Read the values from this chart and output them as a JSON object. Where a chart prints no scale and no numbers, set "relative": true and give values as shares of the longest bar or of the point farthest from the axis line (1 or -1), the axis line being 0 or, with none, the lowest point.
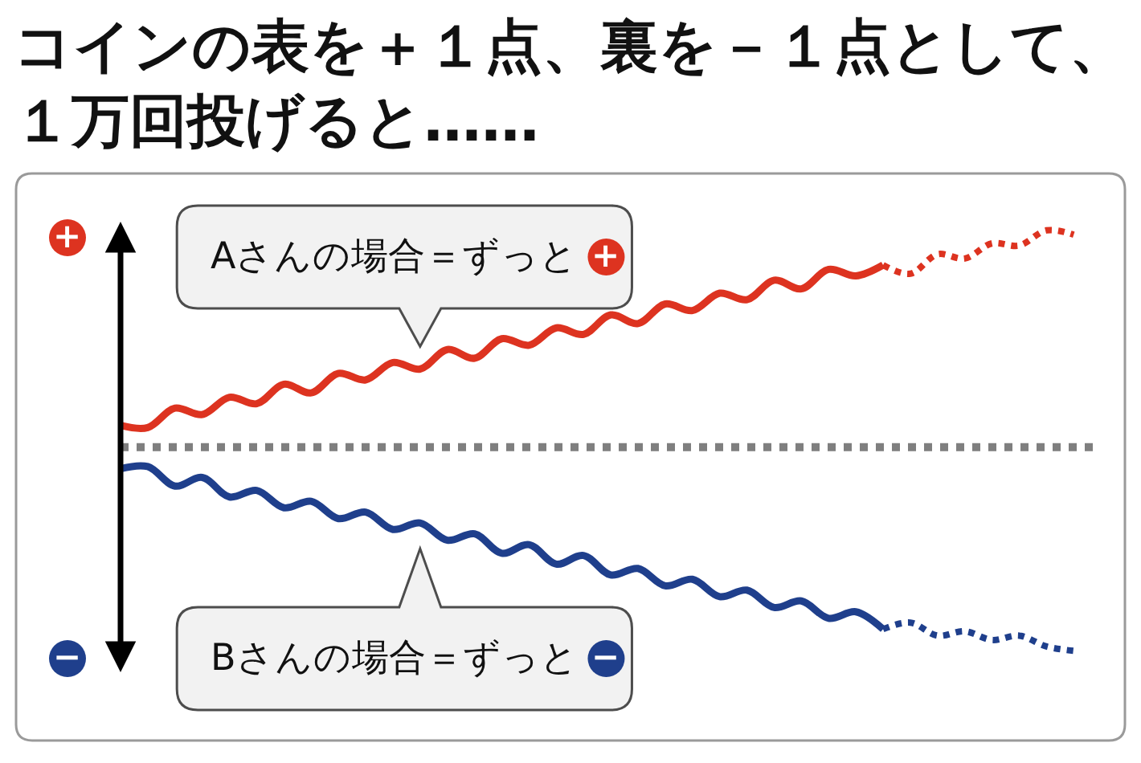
{
  "chart_data": {
    "type": "line",
    "title": "コインの表を＋１点、裏を－１点として、１万回投げると……",
    "relative": true,
    "categories": [
      null,
      null,
      null,
      null,
      null,
      null,
      null,
      null,
      null,
      null,
      null,
      null,
      null,
      null,
      null,
      null,
      null,
      null,
      null,
      null,
      null,
      null,
      null,
      null,
      null,
      null,
      null,
      null,
      null,
      null,
      null,
      null,
      null,
      null,
      null,
      null
    ],
    "series": [
      {
        "name": "Aさんの場合＝ずっと",
        "color": "#dd3320",
        "line_style": "solid",
        "values": [
          0.1,
          0.09,
          0.18,
          0.15,
          0.23,
          0.2,
          0.29,
          0.25,
          0.34,
          0.31,
          0.39,
          0.36,
          0.45,
          0.41,
          0.5,
          0.47,
          0.55,
          0.52,
          0.61,
          0.57,
          0.66,
          0.63,
          0.71,
          0.68,
          0.77,
          0.73,
          0.82,
          0.79,
          0.84,
          null,
          null,
          null,
          null,
          null,
          null,
          null
        ]
      },
      {
        "name": "Bさんの場合＝ずっと",
        "color": "#1f3f8c",
        "line_style": "solid",
        "values": [
          -0.1,
          -0.09,
          -0.18,
          -0.14,
          -0.23,
          -0.2,
          -0.28,
          -0.25,
          -0.33,
          -0.3,
          -0.38,
          -0.35,
          -0.43,
          -0.4,
          -0.49,
          -0.45,
          -0.54,
          -0.5,
          -0.59,
          -0.56,
          -0.64,
          -0.61,
          -0.69,
          -0.66,
          -0.74,
          -0.71,
          -0.79,
          -0.76,
          -0.84,
          null,
          null,
          null,
          null,
          null,
          null,
          null
        ]
      },
      {
        "color": "#dd3320",
        "line_style": "dotted",
        "values": [
          null,
          null,
          null,
          null,
          null,
          null,
          null,
          null,
          null,
          null,
          null,
          null,
          null,
          null,
          null,
          null,
          null,
          null,
          null,
          null,
          null,
          null,
          null,
          null,
          null,
          null,
          null,
          null,
          0.84,
          0.8,
          0.89,
          0.87,
          0.94,
          0.93,
          1,
          0.98
        ]
      },
      {
        "color": "#1f3f8c",
        "line_style": "dotted",
        "values": [
          null,
          null,
          null,
          null,
          null,
          null,
          null,
          null,
          null,
          null,
          null,
          null,
          null,
          null,
          null,
          null,
          null,
          null,
          null,
          null,
          null,
          null,
          null,
          null,
          null,
          null,
          null,
          null,
          -0.84,
          -0.81,
          -0.87,
          -0.85,
          -0.89,
          -0.87,
          -0.92,
          -0.94
        ]
      }
    ],
    "ref_lines": [
      {
        "axis": "y",
        "value": 0,
        "color": "#7f7f7f",
        "line_style": "dotted"
      }
    ],
    "annotations": [
      "+",
      "−"
    ]
  }
}
